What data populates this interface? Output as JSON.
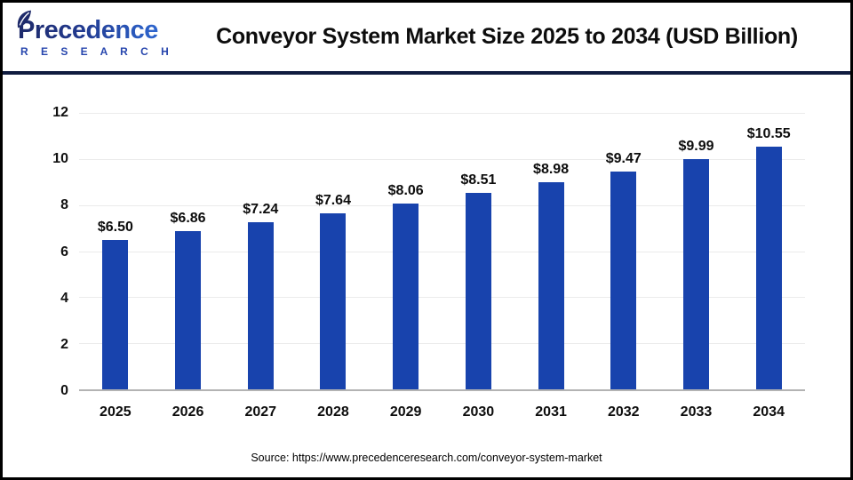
{
  "branding": {
    "logo_primary": "Precedence",
    "logo_secondary": "R E S E A R C H"
  },
  "header": {
    "title": "Conveyor System Market Size 2025 to 2034 (USD Billion)"
  },
  "chart_data": {
    "type": "bar",
    "title": "Conveyor System Market Size 2025 to 2034 (USD Billion)",
    "categories": [
      "2025",
      "2026",
      "2027",
      "2028",
      "2029",
      "2030",
      "2031",
      "2032",
      "2033",
      "2034"
    ],
    "values": [
      6.5,
      6.86,
      7.24,
      7.64,
      8.06,
      8.51,
      8.98,
      9.47,
      9.99,
      10.55
    ],
    "bar_labels": [
      "$6.50",
      "$6.86",
      "$7.24",
      "$7.64",
      "$8.06",
      "$8.51",
      "$8.98",
      "$9.47",
      "$9.99",
      "$10.55"
    ],
    "unit": "USD Billion",
    "xlabel": "",
    "ylabel": "",
    "ylim": [
      0,
      12
    ],
    "yticks": [
      0,
      2,
      4,
      6,
      8,
      10,
      12
    ],
    "grid": true,
    "legend": "none"
  },
  "colors": {
    "bar": "#1843ad",
    "divider": "#101c3f",
    "gridline": "#ebebeb",
    "axis": "#b3b3b3",
    "logo_dark": "#1e2a6a",
    "logo_light": "#2e66cf",
    "logo_sub": "#2746ad"
  },
  "footer": {
    "source": "Source: https://www.precedenceresearch.com/conveyor-system-market"
  }
}
